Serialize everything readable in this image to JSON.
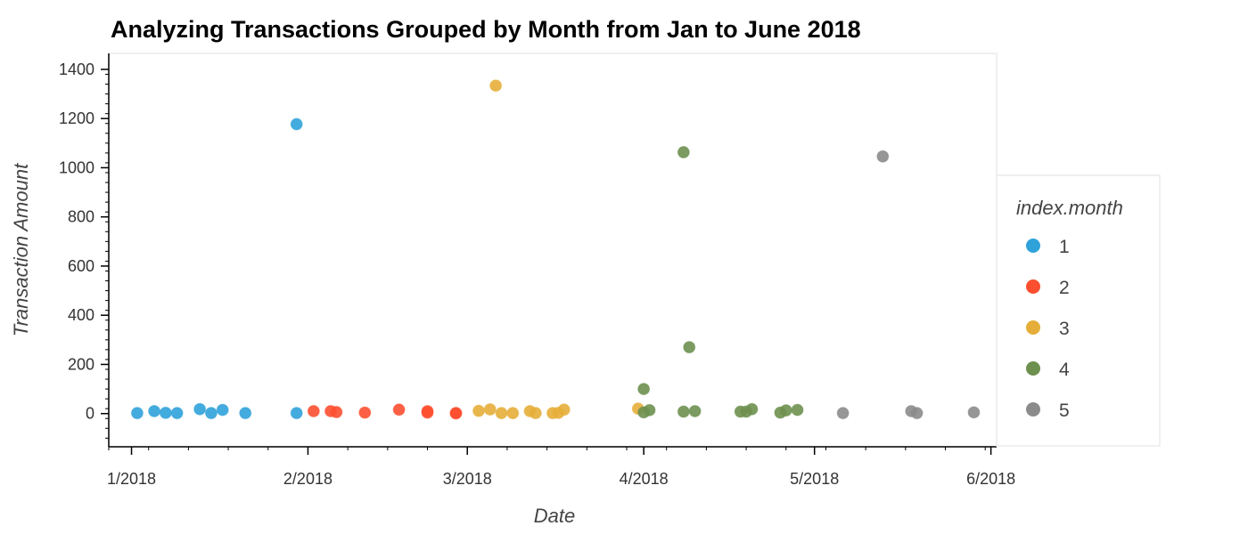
{
  "chart_data": {
    "type": "scatter",
    "title": "Analyzing Transactions Grouped by Month from Jan to June 2018",
    "xlabel": "Date",
    "ylabel": "Transaction Amount",
    "x_ticks": [
      "1/2018",
      "2/2018",
      "3/2018",
      "4/2018",
      "5/2018",
      "6/2018"
    ],
    "y_ticks": [
      0,
      200,
      400,
      600,
      800,
      1000,
      1200,
      1400
    ],
    "xlim": [
      "2017-12-28",
      "2018-06-02"
    ],
    "ylim": [
      -135,
      1465
    ],
    "grid": false,
    "legend": {
      "title": "index.month",
      "position": "right"
    },
    "series": [
      {
        "name": "1",
        "color": "#30a2da",
        "points": [
          {
            "x": "2018-01-02",
            "y": 2
          },
          {
            "x": "2018-01-05",
            "y": 10
          },
          {
            "x": "2018-01-07",
            "y": 3
          },
          {
            "x": "2018-01-09",
            "y": 2
          },
          {
            "x": "2018-01-13",
            "y": 18
          },
          {
            "x": "2018-01-15",
            "y": 2
          },
          {
            "x": "2018-01-17",
            "y": 15
          },
          {
            "x": "2018-01-21",
            "y": 2
          },
          {
            "x": "2018-01-30",
            "y": 1177
          },
          {
            "x": "2018-01-30",
            "y": 2
          }
        ]
      },
      {
        "name": "2",
        "color": "#fc4f30",
        "points": [
          {
            "x": "2018-02-02",
            "y": 10
          },
          {
            "x": "2018-02-05",
            "y": 10
          },
          {
            "x": "2018-02-06",
            "y": 6
          },
          {
            "x": "2018-02-11",
            "y": 4
          },
          {
            "x": "2018-02-17",
            "y": 16
          },
          {
            "x": "2018-02-22",
            "y": 4
          },
          {
            "x": "2018-02-22",
            "y": 10
          },
          {
            "x": "2018-02-27",
            "y": 1
          },
          {
            "x": "2018-02-27",
            "y": 2
          }
        ]
      },
      {
        "name": "3",
        "color": "#e5ae38",
        "points": [
          {
            "x": "2018-03-03",
            "y": 11
          },
          {
            "x": "2018-03-05",
            "y": 17
          },
          {
            "x": "2018-03-06",
            "y": 1334
          },
          {
            "x": "2018-03-07",
            "y": 2
          },
          {
            "x": "2018-03-09",
            "y": 2
          },
          {
            "x": "2018-03-12",
            "y": 10
          },
          {
            "x": "2018-03-13",
            "y": 2
          },
          {
            "x": "2018-03-16",
            "y": 2
          },
          {
            "x": "2018-03-17",
            "y": 3
          },
          {
            "x": "2018-03-18",
            "y": 16
          },
          {
            "x": "2018-03-31",
            "y": 20
          }
        ]
      },
      {
        "name": "4",
        "color": "#6d904f",
        "points": [
          {
            "x": "2018-04-01",
            "y": 100
          },
          {
            "x": "2018-04-01",
            "y": 5
          },
          {
            "x": "2018-04-02",
            "y": 14
          },
          {
            "x": "2018-04-08",
            "y": 1063
          },
          {
            "x": "2018-04-08",
            "y": 8
          },
          {
            "x": "2018-04-09",
            "y": 270
          },
          {
            "x": "2018-04-10",
            "y": 10
          },
          {
            "x": "2018-04-18",
            "y": 8
          },
          {
            "x": "2018-04-19",
            "y": 8
          },
          {
            "x": "2018-04-20",
            "y": 18
          },
          {
            "x": "2018-04-25",
            "y": 4
          },
          {
            "x": "2018-04-26",
            "y": 13
          },
          {
            "x": "2018-04-28",
            "y": 15
          }
        ]
      },
      {
        "name": "5",
        "color": "#8b8b8b",
        "points": [
          {
            "x": "2018-05-06",
            "y": 2
          },
          {
            "x": "2018-05-13",
            "y": 1046
          },
          {
            "x": "2018-05-18",
            "y": 10
          },
          {
            "x": "2018-05-19",
            "y": 2
          },
          {
            "x": "2018-05-29",
            "y": 5
          }
        ]
      }
    ]
  }
}
